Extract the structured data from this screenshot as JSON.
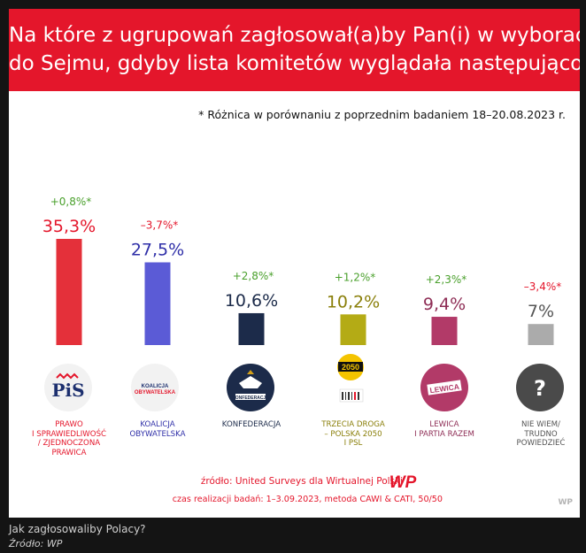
{
  "header": {
    "title_line1": "Na które z ugrupowań zagłosował(a)by Pan(i) w wyborach",
    "title_line2": "do Sejmu, gdyby lista komitetów wyglądała następująco?"
  },
  "note": "* Różnica w porównaniu z poprzednim badaniem 18–20.08.2023 r.",
  "chart_data": {
    "type": "bar",
    "categories": [
      "PRAWO I SPRAWIEDLIWOŚĆ / ZJEDNOCZONA PRAWICA",
      "KOALICJA OBYWATELSKA",
      "KONFEDERACJA",
      "TRZECIA DROGA – POLSKA 2050 I PSL",
      "LEWICA I PARTIA RAZEM",
      "NIE WIEM/ TRUDNO POWIEDZIEĆ"
    ],
    "values": [
      35.3,
      27.5,
      10.6,
      10.2,
      9.4,
      7
    ],
    "value_labels": [
      "35,3%",
      "27,5%",
      "10,6%",
      "10,2%",
      "9,4%",
      "7%"
    ],
    "changes": [
      "+0,8%*",
      "–3,7%*",
      "+2,8%*",
      "+1,2%*",
      "+2,3%*",
      "–3,4%*"
    ],
    "change_colors": [
      "#4aa02c",
      "#e4162b",
      "#4aa02c",
      "#4aa02c",
      "#4aa02c",
      "#e4162b"
    ],
    "bar_colors": [
      "#e4303a",
      "#5b5bd6",
      "#1c2b4a",
      "#b4ab15",
      "#b23a68",
      "#ababab"
    ],
    "label_colors": [
      "#e4162b",
      "#2f2fa8",
      "#1c2b4a",
      "#8a7f0a",
      "#8e2d55",
      "#555555"
    ],
    "ylim": [
      0,
      36
    ],
    "grid": false,
    "legend": "none"
  },
  "parties": [
    {
      "label": "PRAWO\nI SPRAWIEDLIWOŚĆ\n/ ZJEDNOCZONA\nPRAWICA",
      "logo": "PiS",
      "icon": "pis-logo"
    },
    {
      "label": "KOALICJA\nOBYWATELSKA",
      "logo": "KOALICJA OBYWATELSKA",
      "icon": "ko-logo"
    },
    {
      "label": "KONFEDERACJA",
      "logo": "KONFEDERACJA",
      "icon": "konfederacja-logo"
    },
    {
      "label": "TRZECIA DROGA\n– POLSKA 2050\nI PSL",
      "logo": "2050",
      "icon": "trzecia-droga-logo"
    },
    {
      "label": "LEWICA\nI PARTIA RAZEM",
      "logo": "LEWICA",
      "icon": "lewica-logo"
    },
    {
      "label": "NIE WIEM/\nTRUDNO\nPOWIEDZIEĆ",
      "logo": "?",
      "icon": "question-mark-icon"
    }
  ],
  "footer": {
    "source": "źródło: United Surveys dla Wirtualnej Polski",
    "method": "czas realizacji badań: 1–3.09.2023, metoda CAWI & CATI, 50/50",
    "brand": "WP",
    "watermark": "WP"
  },
  "caption": "Jak zagłosowaliby Polacy?",
  "caption_source": "Źródło: WP"
}
